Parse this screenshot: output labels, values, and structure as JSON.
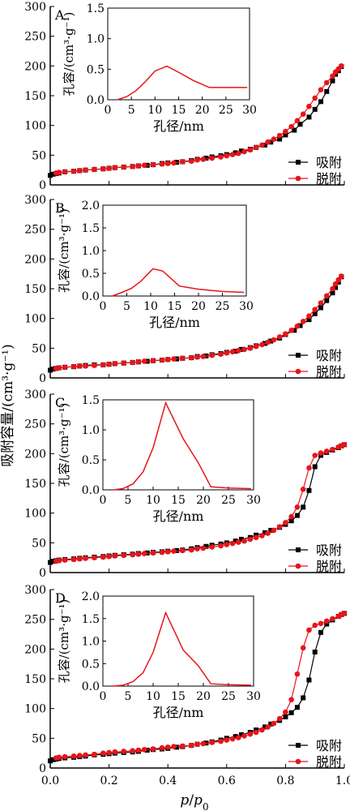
{
  "figure": {
    "shared_ylabel": "吸附容量/(cm³·g⁻¹)",
    "xlabel_main": "p",
    "xlabel_sep": "/",
    "xlabel_p0": "p",
    "xlabel_sub": "0",
    "legend": {
      "adsorption": "吸附",
      "desorption": "脱附"
    },
    "colors": {
      "adsorption": "#000000",
      "desorption": "#e8141b",
      "inset_line": "#e8141b"
    }
  },
  "chart_data": [
    {
      "type": "line",
      "panel": "A",
      "xlim": [
        0,
        1.0
      ],
      "ylim": [
        0,
        300
      ],
      "xticks": [
        "0.0",
        "0.2",
        "0.4",
        "0.6",
        "0.8",
        "1.0"
      ],
      "yticks": [
        "0",
        "50",
        "100",
        "150",
        "200",
        "250",
        "300"
      ],
      "legend_position": "bottom-right",
      "series": [
        {
          "name": "吸附",
          "marker": "square",
          "x": [
            0.0,
            0.01,
            0.02,
            0.03,
            0.05,
            0.08,
            0.1,
            0.12,
            0.15,
            0.18,
            0.2,
            0.22,
            0.25,
            0.28,
            0.3,
            0.33,
            0.35,
            0.38,
            0.4,
            0.43,
            0.45,
            0.48,
            0.5,
            0.53,
            0.55,
            0.58,
            0.6,
            0.63,
            0.65,
            0.68,
            0.7,
            0.73,
            0.75,
            0.78,
            0.8,
            0.83,
            0.85,
            0.88,
            0.9,
            0.92,
            0.94,
            0.96,
            0.97,
            0.98,
            0.99
          ],
          "y": [
            16,
            18,
            19,
            20,
            22,
            23,
            24,
            25,
            26,
            27,
            28,
            29,
            30,
            31,
            32,
            33,
            34,
            36,
            37,
            38,
            39,
            41,
            43,
            45,
            47,
            49,
            51,
            54,
            57,
            60,
            63,
            67,
            72,
            77,
            84,
            92,
            102,
            114,
            127,
            140,
            157,
            175,
            186,
            192,
            199
          ]
        },
        {
          "name": "脱附",
          "marker": "circle",
          "x": [
            0.99,
            0.98,
            0.97,
            0.96,
            0.94,
            0.92,
            0.9,
            0.88,
            0.86,
            0.84,
            0.82,
            0.8,
            0.78,
            0.76,
            0.74,
            0.72,
            0.7,
            0.68,
            0.66,
            0.64,
            0.62,
            0.6,
            0.58,
            0.55,
            0.52,
            0.5,
            0.48,
            0.45,
            0.42,
            0.4,
            0.38,
            0.35,
            0.32,
            0.3,
            0.28,
            0.25,
            0.22,
            0.2,
            0.18,
            0.15,
            0.12,
            0.1,
            0.08,
            0.05,
            0.03,
            0.02
          ],
          "y": [
            200,
            195,
            190,
            183,
            172,
            160,
            146,
            132,
            119,
            108,
            98,
            90,
            83,
            77,
            72,
            67,
            63,
            59,
            56,
            53,
            51,
            49,
            47,
            45,
            43,
            42,
            40,
            39,
            37,
            36,
            35,
            34,
            33,
            32,
            31,
            30,
            29,
            28,
            27,
            26,
            25,
            24,
            23,
            22,
            21,
            20
          ]
        }
      ],
      "inset": {
        "type": "line",
        "xlabel": "孔径/nm",
        "ylabel": "孔容/(cm³·g⁻¹)",
        "xlim": [
          0,
          30
        ],
        "ylim": [
          0,
          1.5
        ],
        "xticks": [
          "0",
          "5",
          "10",
          "15",
          "20",
          "25",
          "30"
        ],
        "yticks": [
          "0.0",
          "0.5",
          "1.0",
          "1.5"
        ],
        "x": [
          2,
          4,
          6,
          8,
          10,
          12.5,
          15,
          18,
          21.5,
          25,
          29.5
        ],
        "y": [
          0.0,
          0.05,
          0.15,
          0.3,
          0.47,
          0.55,
          0.45,
          0.32,
          0.2,
          0.2,
          0.2
        ]
      }
    },
    {
      "type": "line",
      "panel": "B",
      "xlim": [
        0,
        1.0
      ],
      "ylim": [
        0,
        300
      ],
      "xticks": [
        "0.0",
        "0.2",
        "0.4",
        "0.6",
        "0.8",
        "1.0"
      ],
      "yticks": [
        "0",
        "50",
        "100",
        "150",
        "200",
        "250",
        "300"
      ],
      "legend_position": "bottom-right",
      "series": [
        {
          "name": "吸附",
          "marker": "square",
          "x": [
            0.0,
            0.01,
            0.02,
            0.03,
            0.05,
            0.08,
            0.1,
            0.12,
            0.15,
            0.18,
            0.2,
            0.22,
            0.25,
            0.28,
            0.3,
            0.33,
            0.35,
            0.38,
            0.4,
            0.43,
            0.45,
            0.48,
            0.5,
            0.53,
            0.55,
            0.58,
            0.6,
            0.63,
            0.65,
            0.68,
            0.7,
            0.73,
            0.75,
            0.78,
            0.8,
            0.83,
            0.85,
            0.88,
            0.9,
            0.92,
            0.94,
            0.96,
            0.97,
            0.98,
            0.99
          ],
          "y": [
            13,
            15,
            16,
            17,
            18,
            19,
            20,
            21,
            22,
            22,
            23,
            24,
            25,
            26,
            27,
            28,
            29,
            30,
            31,
            32,
            33,
            34,
            36,
            37,
            39,
            41,
            43,
            45,
            48,
            51,
            54,
            58,
            62,
            67,
            73,
            80,
            88,
            98,
            108,
            118,
            130,
            143,
            152,
            161,
            170
          ]
        },
        {
          "name": "脱附",
          "marker": "circle",
          "x": [
            0.99,
            0.98,
            0.97,
            0.96,
            0.94,
            0.92,
            0.9,
            0.88,
            0.86,
            0.84,
            0.82,
            0.8,
            0.78,
            0.76,
            0.74,
            0.72,
            0.7,
            0.68,
            0.66,
            0.64,
            0.62,
            0.6,
            0.58,
            0.55,
            0.52,
            0.5,
            0.48,
            0.45,
            0.42,
            0.4,
            0.38,
            0.35,
            0.32,
            0.3,
            0.28,
            0.25,
            0.22,
            0.2,
            0.18,
            0.15,
            0.12,
            0.1,
            0.08,
            0.05,
            0.03,
            0.02
          ],
          "y": [
            171,
            165,
            158,
            150,
            138,
            126,
            115,
            104,
            95,
            87,
            80,
            74,
            69,
            64,
            60,
            56,
            53,
            50,
            48,
            46,
            44,
            42,
            40,
            38,
            36,
            35,
            34,
            33,
            32,
            31,
            30,
            29,
            28,
            27,
            26,
            25,
            24,
            23,
            22,
            21,
            20,
            20,
            19,
            18,
            17,
            16
          ]
        }
      ],
      "inset": {
        "type": "line",
        "xlabel": "孔径/nm",
        "ylabel": "孔容/(cm³·g⁻¹)",
        "xlim": [
          0,
          30
        ],
        "ylim": [
          0,
          2.0
        ],
        "xticks": [
          "0",
          "5",
          "10",
          "15",
          "20",
          "25",
          "30"
        ],
        "yticks": [
          "0.0",
          "0.5",
          "1.0",
          "1.5",
          "2.0"
        ],
        "x": [
          2,
          4,
          6,
          8,
          10,
          10.5,
          12.5,
          16,
          20,
          25,
          29.5
        ],
        "y": [
          0.0,
          0.08,
          0.17,
          0.33,
          0.55,
          0.6,
          0.55,
          0.22,
          0.15,
          0.1,
          0.08
        ]
      }
    },
    {
      "type": "line",
      "panel": "C",
      "xlim": [
        0,
        1.0
      ],
      "ylim": [
        0,
        300
      ],
      "xticks": [
        "0.0",
        "0.2",
        "0.4",
        "0.6",
        "0.8",
        "1.0"
      ],
      "yticks": [
        "0",
        "50",
        "100",
        "150",
        "200",
        "250",
        "300"
      ],
      "legend_position": "bottom-right",
      "series": [
        {
          "name": "吸附",
          "marker": "square",
          "x": [
            0.0,
            0.01,
            0.02,
            0.03,
            0.05,
            0.08,
            0.1,
            0.12,
            0.15,
            0.18,
            0.2,
            0.22,
            0.25,
            0.28,
            0.3,
            0.33,
            0.35,
            0.38,
            0.4,
            0.43,
            0.45,
            0.48,
            0.5,
            0.53,
            0.55,
            0.58,
            0.6,
            0.63,
            0.65,
            0.68,
            0.7,
            0.73,
            0.75,
            0.78,
            0.8,
            0.82,
            0.84,
            0.86,
            0.88,
            0.9,
            0.92,
            0.94,
            0.96,
            0.98,
            0.99,
            1.0
          ],
          "y": [
            17,
            19,
            20,
            21,
            22,
            23,
            24,
            25,
            26,
            27,
            28,
            29,
            30,
            31,
            32,
            33,
            34,
            35,
            36,
            37,
            38,
            40,
            42,
            44,
            46,
            48,
            50,
            53,
            56,
            59,
            63,
            67,
            71,
            76,
            81,
            87,
            96,
            110,
            138,
            178,
            197,
            202,
            206,
            210,
            213,
            215
          ]
        },
        {
          "name": "脱附",
          "marker": "circle",
          "x": [
            1.0,
            0.99,
            0.98,
            0.96,
            0.94,
            0.92,
            0.9,
            0.88,
            0.86,
            0.84,
            0.82,
            0.8,
            0.78,
            0.76,
            0.74,
            0.72,
            0.7,
            0.68,
            0.66,
            0.64,
            0.62,
            0.6,
            0.58,
            0.55,
            0.52,
            0.5,
            0.48,
            0.45,
            0.42,
            0.4,
            0.38,
            0.35,
            0.32,
            0.3,
            0.28,
            0.25,
            0.22,
            0.2,
            0.18,
            0.15,
            0.12,
            0.1,
            0.08,
            0.05,
            0.03,
            0.02
          ],
          "y": [
            215,
            213,
            211,
            207,
            204,
            201,
            197,
            176,
            140,
            110,
            94,
            84,
            77,
            71,
            66,
            62,
            59,
            56,
            53,
            51,
            49,
            47,
            45,
            43,
            41,
            40,
            38,
            37,
            36,
            35,
            34,
            33,
            32,
            31,
            30,
            29,
            28,
            27,
            26,
            25,
            24,
            23,
            22,
            21,
            20,
            19
          ]
        }
      ],
      "inset": {
        "type": "line",
        "xlabel": "孔径/nm",
        "ylabel": "孔容/(cm³·g⁻¹)",
        "xlim": [
          0,
          30
        ],
        "ylim": [
          0,
          1.5
        ],
        "xticks": [
          "0",
          "5",
          "10",
          "15",
          "20",
          "25",
          "30"
        ],
        "yticks": [
          "0.0",
          "0.5",
          "1.0",
          "1.5"
        ],
        "x": [
          2,
          4,
          6,
          8,
          10,
          12.5,
          16,
          19,
          21.5,
          25,
          29.5
        ],
        "y": [
          0.0,
          0.02,
          0.1,
          0.3,
          0.7,
          1.45,
          0.85,
          0.45,
          0.05,
          0.03,
          0.02
        ]
      }
    },
    {
      "type": "line",
      "panel": "D",
      "xlim": [
        0,
        1.0
      ],
      "ylim": [
        0,
        300
      ],
      "xticks": [
        "0.0",
        "0.2",
        "0.4",
        "0.6",
        "0.8",
        "1.0"
      ],
      "yticks": [
        "0",
        "50",
        "100",
        "150",
        "200",
        "250",
        "300"
      ],
      "legend_position": "bottom-right",
      "series": [
        {
          "name": "吸附",
          "marker": "square",
          "x": [
            0.0,
            0.01,
            0.02,
            0.03,
            0.05,
            0.08,
            0.1,
            0.12,
            0.15,
            0.18,
            0.2,
            0.22,
            0.25,
            0.28,
            0.3,
            0.33,
            0.35,
            0.38,
            0.4,
            0.43,
            0.45,
            0.48,
            0.5,
            0.53,
            0.55,
            0.58,
            0.6,
            0.63,
            0.65,
            0.68,
            0.7,
            0.73,
            0.75,
            0.78,
            0.8,
            0.82,
            0.84,
            0.86,
            0.88,
            0.9,
            0.92,
            0.94,
            0.96,
            0.98,
            0.99,
            1.0
          ],
          "y": [
            12,
            14,
            15,
            16,
            17,
            18,
            19,
            20,
            22,
            23,
            24,
            25,
            26,
            27,
            28,
            30,
            31,
            32,
            33,
            35,
            36,
            38,
            40,
            42,
            44,
            47,
            50,
            53,
            56,
            60,
            64,
            69,
            74,
            80,
            86,
            93,
            102,
            118,
            148,
            195,
            228,
            242,
            249,
            255,
            258,
            260
          ]
        },
        {
          "name": "脱附",
          "marker": "circle",
          "x": [
            1.0,
            0.99,
            0.98,
            0.96,
            0.94,
            0.92,
            0.9,
            0.88,
            0.86,
            0.84,
            0.82,
            0.8,
            0.78,
            0.76,
            0.74,
            0.72,
            0.7,
            0.68,
            0.66,
            0.64,
            0.62,
            0.6,
            0.58,
            0.55,
            0.52,
            0.5,
            0.48,
            0.45,
            0.42,
            0.4,
            0.38,
            0.35,
            0.32,
            0.3,
            0.28,
            0.25,
            0.22,
            0.2,
            0.18,
            0.15,
            0.12,
            0.1,
            0.08,
            0.05,
            0.03,
            0.02
          ],
          "y": [
            260,
            258,
            255,
            251,
            247,
            243,
            240,
            232,
            202,
            158,
            115,
            94,
            83,
            75,
            69,
            64,
            60,
            57,
            54,
            51,
            49,
            47,
            45,
            43,
            41,
            40,
            38,
            37,
            36,
            35,
            34,
            32,
            31,
            30,
            29,
            28,
            27,
            26,
            25,
            23,
            22,
            21,
            20,
            19,
            18,
            17
          ]
        }
      ],
      "inset": {
        "type": "line",
        "xlabel": "孔径/nm",
        "ylabel": "孔容/(cm³·g⁻¹)",
        "xlim": [
          0,
          30
        ],
        "ylim": [
          0,
          2.0
        ],
        "xticks": [
          "0",
          "5",
          "10",
          "15",
          "20",
          "25",
          "30"
        ],
        "yticks": [
          "0.0",
          "0.5",
          "1.0",
          "1.5",
          "2.0"
        ],
        "x": [
          2,
          4,
          6,
          8,
          10,
          12.5,
          16,
          19,
          21.5,
          25,
          29.5
        ],
        "y": [
          0.0,
          0.02,
          0.1,
          0.3,
          0.75,
          1.63,
          0.8,
          0.45,
          0.05,
          0.03,
          0.02
        ]
      }
    }
  ]
}
